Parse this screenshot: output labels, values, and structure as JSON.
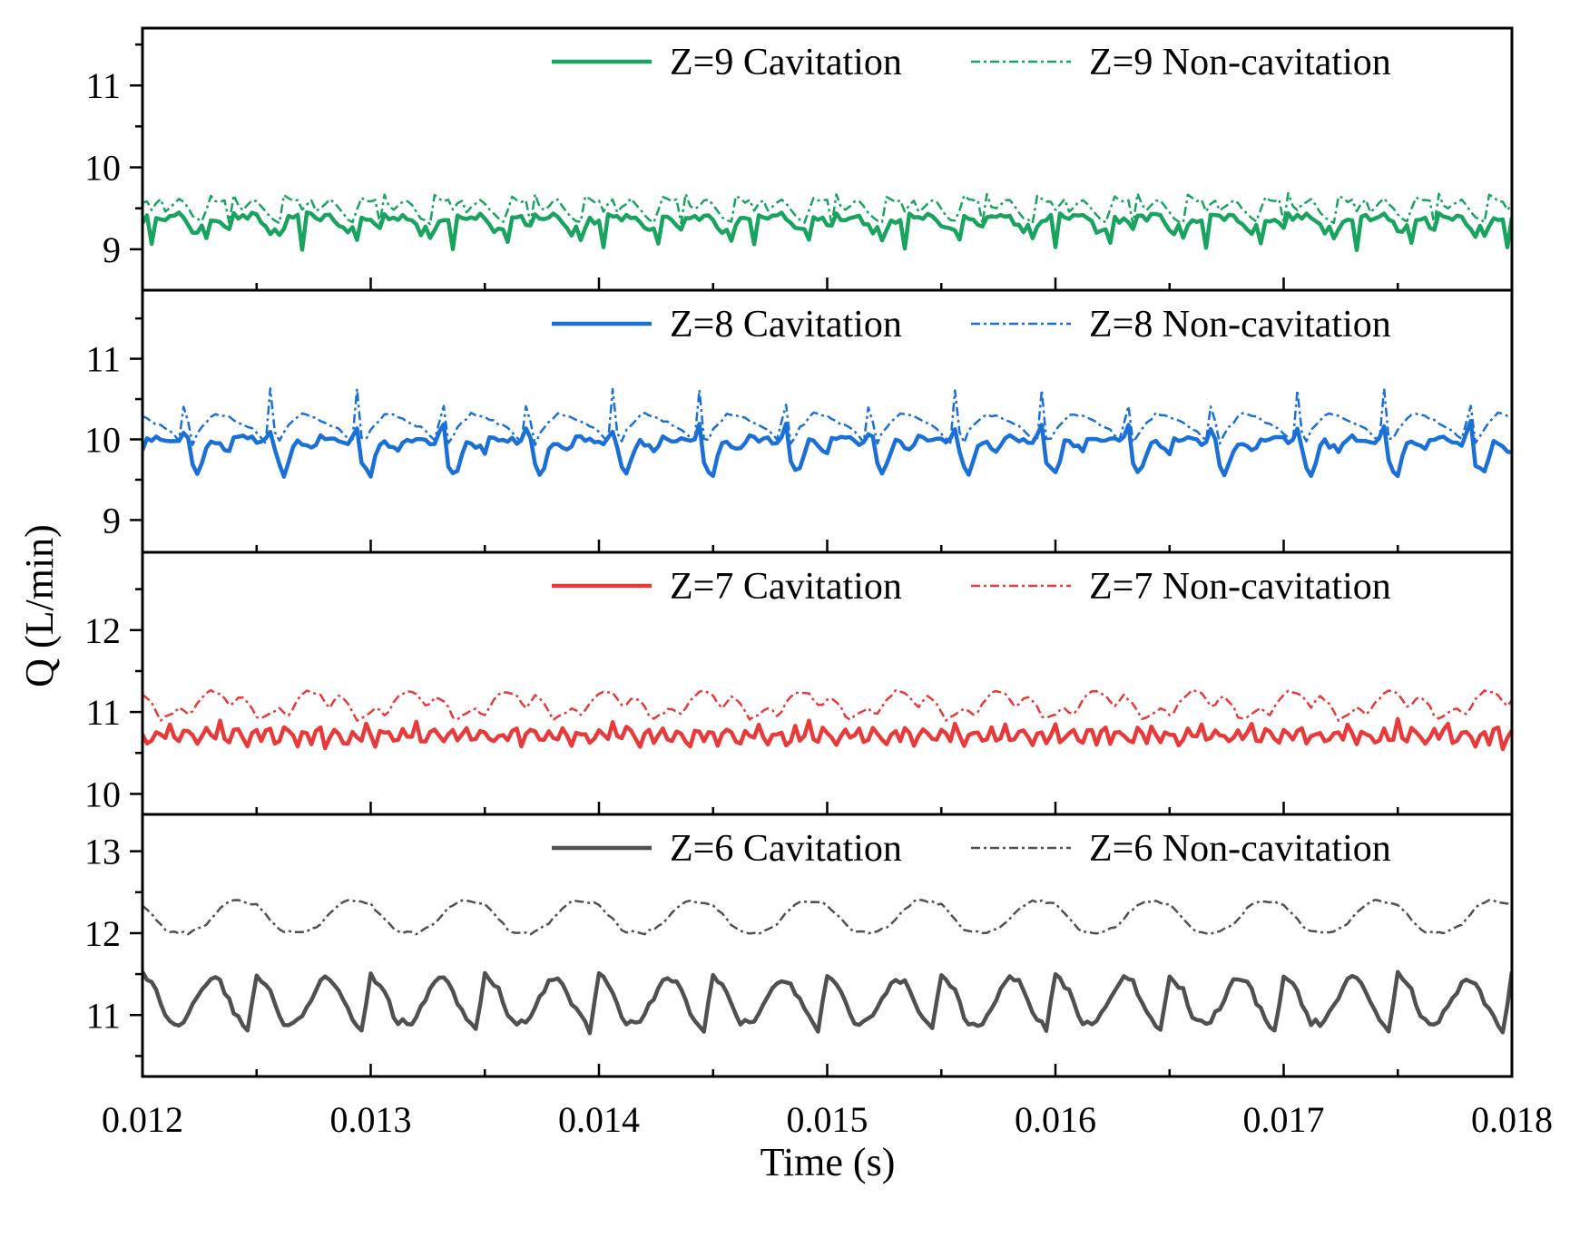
{
  "chart_data": {
    "type": "line",
    "xlabel": "Time (s)",
    "ylabel": "Q (L/min)",
    "xlim": [
      0.012,
      0.018
    ],
    "xticks": [
      "0.012",
      "0.013",
      "0.014",
      "0.015",
      "0.016",
      "0.017",
      "0.018"
    ],
    "panels": [
      {
        "name": "Z=9",
        "ylim": [
          8.5,
          11.7
        ],
        "yticks": [
          "9",
          "10",
          "11"
        ],
        "color": "#18a35f",
        "series": [
          {
            "name": "Z=9 Cavitation",
            "style": "solid",
            "period": 0.00033,
            "phase": 0.0,
            "points": [
              [
                0,
                9.35
              ],
              [
                0.08,
                9.4
              ],
              [
                0.12,
                9.02
              ],
              [
                0.17,
                9.42
              ],
              [
                0.35,
                9.38
              ],
              [
                0.48,
                9.42
              ],
              [
                0.6,
                9.32
              ],
              [
                0.7,
                9.18
              ],
              [
                0.78,
                9.3
              ],
              [
                0.84,
                9.05
              ],
              [
                0.9,
                9.38
              ],
              [
                1,
                9.35
              ]
            ]
          },
          {
            "name": "Z=9 Non-cavitation",
            "style": "dashdot",
            "period": 0.00033,
            "phase": 0.0,
            "points": [
              [
                0,
                9.58
              ],
              [
                0.1,
                9.6
              ],
              [
                0.15,
                9.3
              ],
              [
                0.2,
                9.7
              ],
              [
                0.3,
                9.46
              ],
              [
                0.5,
                9.62
              ],
              [
                0.7,
                9.38
              ],
              [
                0.82,
                9.32
              ],
              [
                0.88,
                9.66
              ],
              [
                1,
                9.58
              ]
            ]
          }
        ]
      },
      {
        "name": "Z=8",
        "ylim": [
          8.6,
          11.85
        ],
        "yticks": [
          "9",
          "10",
          "11"
        ],
        "color": "#1a70d6",
        "series": [
          {
            "name": "Z=8 Cavitation",
            "style": "solid",
            "period": 0.000375,
            "phase": 0.0,
            "points": [
              [
                0,
                9.85
              ],
              [
                0.05,
                10.02
              ],
              [
                0.3,
                10.0
              ],
              [
                0.42,
                9.95
              ],
              [
                0.52,
                10.2
              ],
              [
                0.56,
                9.72
              ],
              [
                0.66,
                9.55
              ],
              [
                0.78,
                9.98
              ],
              [
                0.9,
                9.92
              ],
              [
                1,
                9.85
              ]
            ]
          },
          {
            "name": "Z=8 Non-cavitation",
            "style": "dashdot",
            "period": 0.000375,
            "phase": 0.0,
            "points": [
              [
                0,
                10.28
              ],
              [
                0.3,
                10.12
              ],
              [
                0.45,
                9.95
              ],
              [
                0.5,
                10.72
              ],
              [
                0.54,
                10.12
              ],
              [
                0.58,
                9.92
              ],
              [
                0.66,
                10.12
              ],
              [
                0.84,
                10.32
              ],
              [
                1,
                10.28
              ]
            ]
          }
        ]
      },
      {
        "name": "Z=7",
        "ylim": [
          9.75,
          12.95
        ],
        "yticks": [
          "10",
          "11",
          "12"
        ],
        "color": "#e83a3a",
        "series": [
          {
            "name": "Z=7 Cavitation",
            "style": "solid",
            "period": 0.000215,
            "phase": 0.0,
            "points": [
              [
                0,
                10.74
              ],
              [
                0.15,
                10.6
              ],
              [
                0.3,
                10.8
              ],
              [
                0.45,
                10.62
              ],
              [
                0.58,
                10.88
              ],
              [
                0.72,
                10.58
              ],
              [
                0.86,
                10.78
              ],
              [
                1,
                10.74
              ]
            ]
          },
          {
            "name": "Z=7 Non-cavitation",
            "style": "dashdot",
            "period": 0.00043,
            "phase": 0.0,
            "points": [
              [
                0,
                11.2
              ],
              [
                0.1,
                11.1
              ],
              [
                0.18,
                10.9
              ],
              [
                0.3,
                10.98
              ],
              [
                0.38,
                11.05
              ],
              [
                0.48,
                10.95
              ],
              [
                0.58,
                11.15
              ],
              [
                0.68,
                11.26
              ],
              [
                0.8,
                11.22
              ],
              [
                0.9,
                11.05
              ],
              [
                1,
                11.2
              ]
            ]
          }
        ]
      },
      {
        "name": "Z=6",
        "ylim": [
          10.25,
          13.45
        ],
        "yticks": [
          "11",
          "12",
          "13"
        ],
        "color": "#505050",
        "series": [
          {
            "name": "Z=6 Cavitation",
            "style": "solid",
            "period": 0.0005,
            "phase": 0.0,
            "points": [
              [
                0,
                11.5
              ],
              [
                0.12,
                11.3
              ],
              [
                0.22,
                10.92
              ],
              [
                0.35,
                10.9
              ],
              [
                0.48,
                11.2
              ],
              [
                0.58,
                11.46
              ],
              [
                0.68,
                11.4
              ],
              [
                0.8,
                11.05
              ],
              [
                0.92,
                10.8
              ],
              [
                1,
                11.5
              ]
            ]
          },
          {
            "name": "Z=6 Non-cavitation",
            "style": "dashdot",
            "period": 0.0005,
            "phase": 0.0,
            "points": [
              [
                0,
                12.35
              ],
              [
                0.1,
                12.2
              ],
              [
                0.22,
                12.02
              ],
              [
                0.4,
                12.0
              ],
              [
                0.55,
                12.1
              ],
              [
                0.68,
                12.3
              ],
              [
                0.78,
                12.4
              ],
              [
                0.9,
                12.38
              ],
              [
                1,
                12.35
              ]
            ]
          }
        ]
      }
    ]
  }
}
